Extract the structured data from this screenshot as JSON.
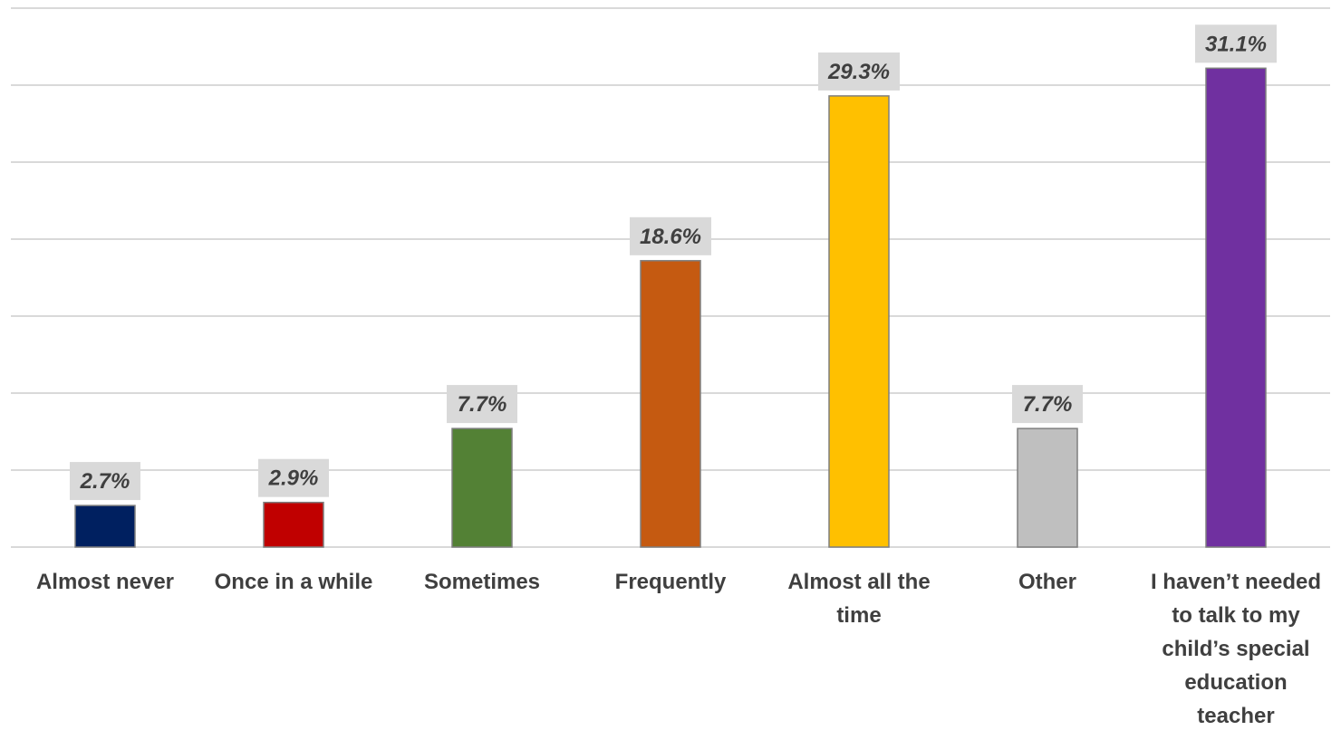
{
  "chart_data": {
    "type": "bar",
    "title": "",
    "xlabel": "",
    "ylabel": "",
    "ylim": [
      0,
      35
    ],
    "grid": true,
    "legend": "none",
    "categories": [
      [
        "Almost never"
      ],
      [
        "Once in a while"
      ],
      [
        "Sometimes"
      ],
      [
        "Frequently"
      ],
      [
        "Almost all the",
        "time"
      ],
      [
        "Other"
      ],
      [
        "I haven’t needed",
        "to talk to my",
        "child’s special",
        "education",
        "teacher"
      ]
    ],
    "values": [
      2.7,
      2.9,
      7.7,
      18.6,
      29.3,
      7.7,
      31.1
    ],
    "data_labels": [
      "2.7%",
      "2.9%",
      "7.7%",
      "18.6%",
      "29.3%",
      "7.7%",
      "31.1%"
    ],
    "colors": [
      "#002060",
      "#c00000",
      "#538135",
      "#c55a11",
      "#ffc000",
      "#bfbfbf",
      "#7030a0"
    ]
  }
}
